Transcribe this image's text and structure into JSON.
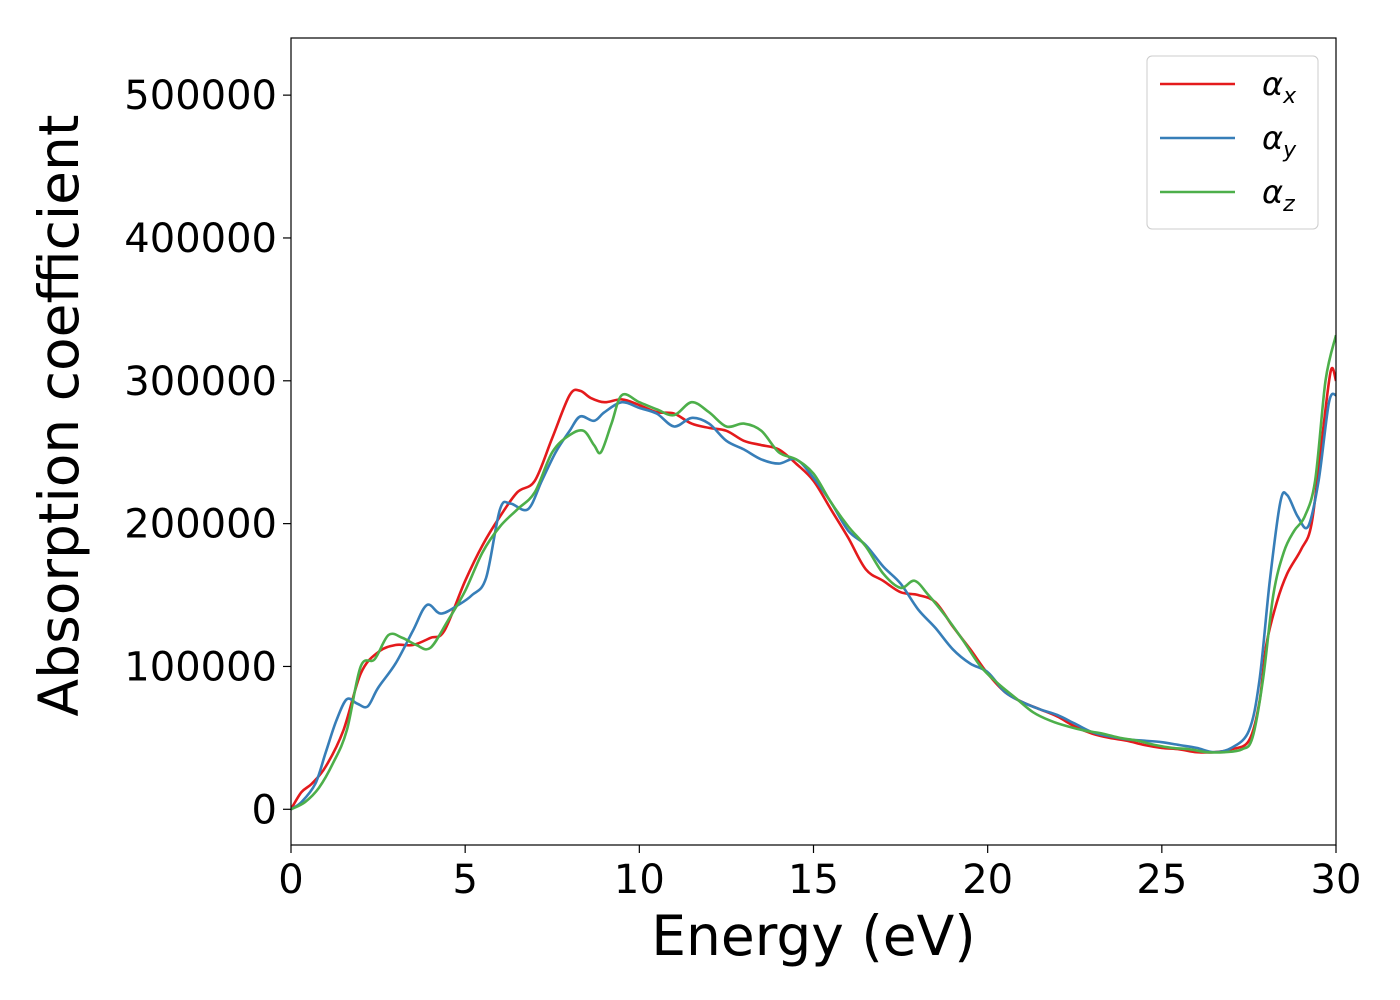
{
  "chart_data": {
    "type": "line",
    "xlabel": "Energy (eV)",
    "ylabel": "Absorption coefficient",
    "xlim": [
      0,
      30
    ],
    "ylim": [
      -25000,
      540000
    ],
    "xticks": [
      "0",
      "5",
      "10",
      "15",
      "20",
      "25",
      "30"
    ],
    "yticks": [
      "0",
      "100000",
      "200000",
      "300000",
      "400000",
      "500000"
    ],
    "grid": false,
    "legend_position": "top-right",
    "series": [
      {
        "name": "αx",
        "legend_base": "α",
        "legend_sub": "x",
        "color": "#e41a1c",
        "points": [
          [
            0,
            0
          ],
          [
            0.3,
            12000
          ],
          [
            0.6,
            18000
          ],
          [
            1,
            30000
          ],
          [
            1.5,
            55000
          ],
          [
            2,
            95000
          ],
          [
            2.5,
            110000
          ],
          [
            3,
            115000
          ],
          [
            3.5,
            115000
          ],
          [
            4,
            120000
          ],
          [
            4.4,
            125000
          ],
          [
            5,
            160000
          ],
          [
            5.5,
            185000
          ],
          [
            6,
            205000
          ],
          [
            6.5,
            222000
          ],
          [
            7,
            230000
          ],
          [
            7.5,
            260000
          ],
          [
            8,
            290000
          ],
          [
            8.3,
            293000
          ],
          [
            8.6,
            288000
          ],
          [
            9,
            285000
          ],
          [
            9.5,
            287000
          ],
          [
            10,
            283000
          ],
          [
            10.5,
            278000
          ],
          [
            11,
            277000
          ],
          [
            11.5,
            270000
          ],
          [
            12,
            267000
          ],
          [
            12.5,
            265000
          ],
          [
            13,
            258000
          ],
          [
            13.5,
            255000
          ],
          [
            14,
            252000
          ],
          [
            14.5,
            242000
          ],
          [
            15,
            230000
          ],
          [
            15.5,
            210000
          ],
          [
            16,
            190000
          ],
          [
            16.5,
            168000
          ],
          [
            17,
            160000
          ],
          [
            17.5,
            152000
          ],
          [
            18,
            150000
          ],
          [
            18.5,
            145000
          ],
          [
            19,
            128000
          ],
          [
            19.5,
            112000
          ],
          [
            20,
            95000
          ],
          [
            20.5,
            82000
          ],
          [
            21,
            75000
          ],
          [
            21.5,
            70000
          ],
          [
            22,
            65000
          ],
          [
            22.5,
            58000
          ],
          [
            23,
            53000
          ],
          [
            23.5,
            50000
          ],
          [
            24,
            48000
          ],
          [
            24.5,
            45000
          ],
          [
            25,
            43000
          ],
          [
            25.5,
            42000
          ],
          [
            26,
            40000
          ],
          [
            26.5,
            40000
          ],
          [
            27,
            42000
          ],
          [
            27.5,
            48000
          ],
          [
            27.8,
            75000
          ],
          [
            28,
            115000
          ],
          [
            28.3,
            145000
          ],
          [
            28.6,
            165000
          ],
          [
            29,
            182000
          ],
          [
            29.3,
            200000
          ],
          [
            29.6,
            260000
          ],
          [
            29.85,
            307000
          ],
          [
            30,
            300000
          ]
        ]
      },
      {
        "name": "αy",
        "legend_base": "α",
        "legend_sub": "y",
        "color": "#377eb8",
        "points": [
          [
            0,
            0
          ],
          [
            0.3,
            5000
          ],
          [
            0.7,
            18000
          ],
          [
            1,
            40000
          ],
          [
            1.3,
            62000
          ],
          [
            1.6,
            77000
          ],
          [
            1.9,
            74000
          ],
          [
            2.2,
            72000
          ],
          [
            2.5,
            85000
          ],
          [
            3,
            102000
          ],
          [
            3.5,
            125000
          ],
          [
            3.9,
            143000
          ],
          [
            4.3,
            137000
          ],
          [
            4.8,
            143000
          ],
          [
            5.2,
            150000
          ],
          [
            5.6,
            162000
          ],
          [
            6,
            210000
          ],
          [
            6.3,
            214000
          ],
          [
            6.8,
            210000
          ],
          [
            7.2,
            230000
          ],
          [
            7.6,
            250000
          ],
          [
            8,
            265000
          ],
          [
            8.3,
            275000
          ],
          [
            8.7,
            272000
          ],
          [
            9,
            278000
          ],
          [
            9.5,
            285000
          ],
          [
            10,
            281000
          ],
          [
            10.5,
            277000
          ],
          [
            11,
            268000
          ],
          [
            11.5,
            274000
          ],
          [
            12,
            270000
          ],
          [
            12.5,
            258000
          ],
          [
            13,
            252000
          ],
          [
            13.5,
            245000
          ],
          [
            14,
            242000
          ],
          [
            14.5,
            245000
          ],
          [
            15,
            232000
          ],
          [
            15.5,
            215000
          ],
          [
            16,
            195000
          ],
          [
            16.5,
            185000
          ],
          [
            17,
            170000
          ],
          [
            17.5,
            158000
          ],
          [
            18,
            140000
          ],
          [
            18.5,
            127000
          ],
          [
            19,
            112000
          ],
          [
            19.5,
            102000
          ],
          [
            20,
            96000
          ],
          [
            20.5,
            82000
          ],
          [
            21,
            75000
          ],
          [
            21.5,
            70000
          ],
          [
            22,
            66000
          ],
          [
            22.5,
            60000
          ],
          [
            23,
            54000
          ],
          [
            23.5,
            51000
          ],
          [
            24,
            49000
          ],
          [
            24.5,
            48000
          ],
          [
            25,
            47000
          ],
          [
            25.5,
            45000
          ],
          [
            26,
            43000
          ],
          [
            26.5,
            40000
          ],
          [
            27,
            43000
          ],
          [
            27.5,
            55000
          ],
          [
            27.8,
            90000
          ],
          [
            28.1,
            160000
          ],
          [
            28.4,
            215000
          ],
          [
            28.6,
            220000
          ],
          [
            28.9,
            205000
          ],
          [
            29.2,
            198000
          ],
          [
            29.5,
            230000
          ],
          [
            29.8,
            285000
          ],
          [
            30,
            290000
          ]
        ]
      },
      {
        "name": "αz",
        "legend_base": "α",
        "legend_sub": "z",
        "color": "#4daf4a",
        "points": [
          [
            0,
            0
          ],
          [
            0.4,
            5000
          ],
          [
            0.8,
            15000
          ],
          [
            1.2,
            32000
          ],
          [
            1.6,
            55000
          ],
          [
            2,
            100000
          ],
          [
            2.4,
            105000
          ],
          [
            2.8,
            122000
          ],
          [
            3.2,
            120000
          ],
          [
            3.6,
            115000
          ],
          [
            4,
            113000
          ],
          [
            4.5,
            132000
          ],
          [
            5,
            153000
          ],
          [
            5.5,
            180000
          ],
          [
            6,
            198000
          ],
          [
            6.5,
            210000
          ],
          [
            7,
            222000
          ],
          [
            7.5,
            250000
          ],
          [
            8,
            262000
          ],
          [
            8.4,
            265000
          ],
          [
            8.7,
            255000
          ],
          [
            8.9,
            250000
          ],
          [
            9.2,
            270000
          ],
          [
            9.5,
            290000
          ],
          [
            10,
            285000
          ],
          [
            10.5,
            280000
          ],
          [
            11,
            276000
          ],
          [
            11.5,
            285000
          ],
          [
            12,
            278000
          ],
          [
            12.5,
            268000
          ],
          [
            13,
            270000
          ],
          [
            13.5,
            265000
          ],
          [
            14,
            250000
          ],
          [
            14.5,
            245000
          ],
          [
            15,
            235000
          ],
          [
            15.5,
            215000
          ],
          [
            16,
            198000
          ],
          [
            16.5,
            184000
          ],
          [
            17,
            165000
          ],
          [
            17.5,
            155000
          ],
          [
            17.9,
            160000
          ],
          [
            18.3,
            150000
          ],
          [
            18.8,
            135000
          ],
          [
            19.3,
            118000
          ],
          [
            19.8,
            100000
          ],
          [
            20.3,
            88000
          ],
          [
            20.8,
            78000
          ],
          [
            21.3,
            68000
          ],
          [
            21.8,
            62000
          ],
          [
            22.3,
            58000
          ],
          [
            22.8,
            55000
          ],
          [
            23.3,
            53000
          ],
          [
            23.8,
            50000
          ],
          [
            24.3,
            48000
          ],
          [
            24.8,
            45000
          ],
          [
            25.3,
            43000
          ],
          [
            25.8,
            42000
          ],
          [
            26.3,
            40000
          ],
          [
            26.8,
            40000
          ],
          [
            27.3,
            42000
          ],
          [
            27.6,
            50000
          ],
          [
            27.9,
            90000
          ],
          [
            28.2,
            150000
          ],
          [
            28.5,
            180000
          ],
          [
            28.8,
            195000
          ],
          [
            29.1,
            205000
          ],
          [
            29.4,
            230000
          ],
          [
            29.7,
            300000
          ],
          [
            30,
            332000
          ]
        ]
      }
    ]
  }
}
